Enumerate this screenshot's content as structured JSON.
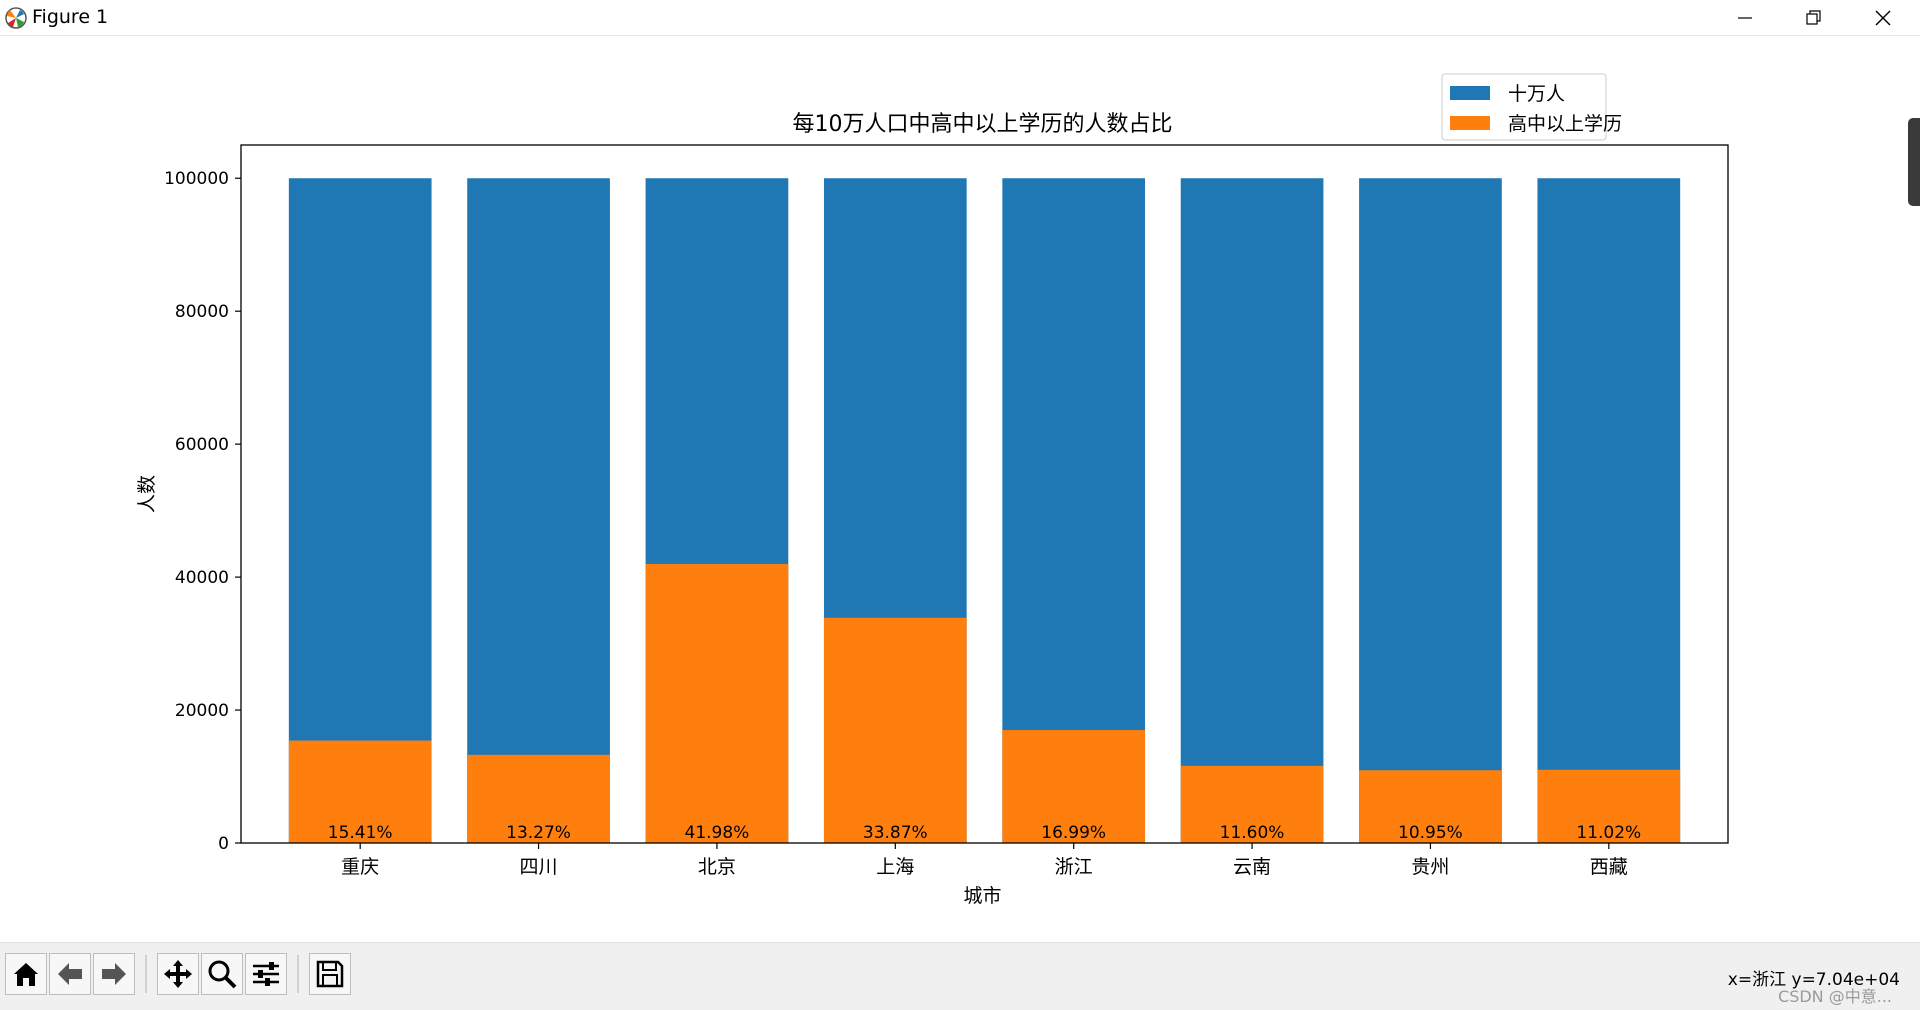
{
  "window": {
    "title": "Figure 1",
    "icon_name": "matplotlib-icon",
    "controls": [
      "minimize-icon",
      "restore-icon",
      "close-icon"
    ]
  },
  "toolbar": {
    "buttons": [
      "home-icon",
      "back-icon",
      "forward-icon",
      "pan-icon",
      "zoom-icon",
      "configure-subplots-icon",
      "save-icon"
    ],
    "coords_text": "x=浙江 y=7.04e+04",
    "watermark": "CSDN @中意..."
  },
  "chart_data": {
    "type": "bar",
    "stacked": "overlay",
    "title": "每10万人口中高中以上学历的人数占比",
    "xlabel": "城市",
    "ylabel": "人数",
    "categories": [
      "重庆",
      "四川",
      "北京",
      "上海",
      "浙江",
      "云南",
      "贵州",
      "西藏"
    ],
    "ylim": [
      0,
      105000
    ],
    "yticks": [
      0,
      20000,
      40000,
      60000,
      80000,
      100000
    ],
    "series": [
      {
        "name": "十万人",
        "color": "#1f77b4",
        "values": [
          100000,
          100000,
          100000,
          100000,
          100000,
          100000,
          100000,
          100000
        ]
      },
      {
        "name": "高中以上学历",
        "color": "#ff7f0e",
        "values": [
          15410,
          13270,
          41980,
          33870,
          16990,
          11600,
          10950,
          11020
        ]
      }
    ],
    "data_labels": [
      "15.41%",
      "13.27%",
      "41.98%",
      "33.87%",
      "16.99%",
      "11.60%",
      "10.95%",
      "11.02%"
    ],
    "legend_position": "top-right",
    "grid": false
  }
}
